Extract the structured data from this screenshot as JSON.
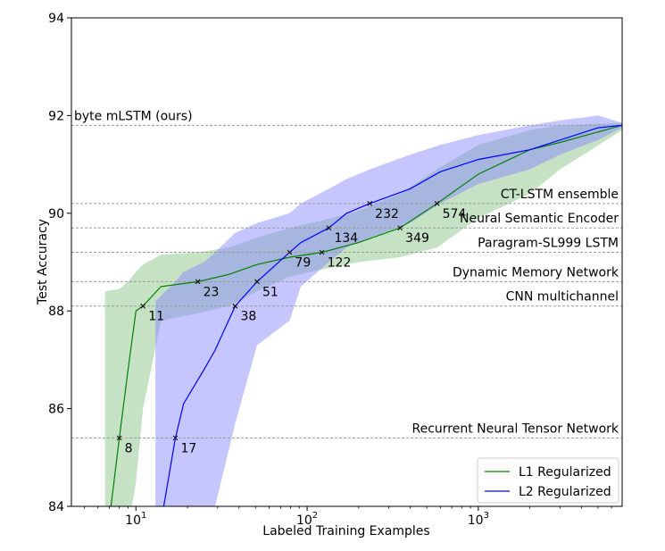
{
  "chart_data": {
    "type": "line",
    "xlabel": "Labeled Training Examples",
    "ylabel": "Test Accuracy",
    "xscale": "log",
    "xlim": [
      4.2,
      6920
    ],
    "ylim": [
      84,
      94
    ],
    "grid": false,
    "legend_position": "bottom-right",
    "x_ticks": [
      {
        "value": 10,
        "base": "10",
        "exp": "1"
      },
      {
        "value": 100,
        "base": "10",
        "exp": "2"
      },
      {
        "value": 1000,
        "base": "10",
        "exp": "3"
      }
    ],
    "y_ticks": [
      84,
      86,
      88,
      90,
      92,
      94
    ],
    "reference_lines": [
      {
        "label": "byte mLSTM (ours)",
        "y": 91.8
      },
      {
        "label": "CT-LSTM ensemble",
        "y": 90.2
      },
      {
        "label": "Neural Semantic Encoder",
        "y": 89.7
      },
      {
        "label": "Paragram-SL999 LSTM",
        "y": 89.2
      },
      {
        "label": "Dynamic Memory Network",
        "y": 88.6
      },
      {
        "label": "CNN multichannel",
        "y": 88.1
      },
      {
        "label": "Recurrent Neural Tensor Network",
        "y": 85.4
      }
    ],
    "series": [
      {
        "name": "L1 Regularized",
        "color": "#008000",
        "band_color": "#7fbf7f",
        "x": [
          6.6,
          8,
          9,
          10,
          11,
          14,
          23,
          35,
          51,
          79,
          122,
          200,
          349,
          574,
          1000,
          2000,
          3000,
          6920
        ],
        "y": [
          83.0,
          85.4,
          86.8,
          88.0,
          88.1,
          88.5,
          88.6,
          88.75,
          88.95,
          89.1,
          89.2,
          89.4,
          89.7,
          90.2,
          90.8,
          91.3,
          91.45,
          91.8
        ],
        "upper": [
          88.4,
          88.45,
          88.6,
          88.8,
          88.95,
          89.15,
          89.2,
          89.3,
          89.5,
          89.7,
          89.85,
          90.05,
          90.4,
          90.9,
          91.4,
          91.7,
          91.8,
          91.85
        ],
        "lower": [
          83.0,
          83.0,
          83.5,
          84.5,
          86.0,
          87.8,
          87.95,
          88.1,
          88.4,
          88.7,
          88.85,
          89.0,
          89.1,
          89.3,
          89.9,
          90.4,
          90.9,
          91.7
        ]
      },
      {
        "name": "L2 Regularized",
        "color": "#0000ff",
        "band_color": "#8080ff",
        "x": [
          13,
          17,
          19,
          25,
          29,
          38,
          51,
          79,
          92,
          134,
          170,
          232,
          400,
          600,
          1000,
          2000,
          3000,
          5000,
          6920
        ],
        "y": [
          83.0,
          85.4,
          86.1,
          86.8,
          87.2,
          88.1,
          88.6,
          89.2,
          89.4,
          89.7,
          90.0,
          90.2,
          90.5,
          90.85,
          91.1,
          91.3,
          91.5,
          91.75,
          91.8
        ],
        "upper": [
          88.2,
          88.6,
          88.8,
          89.0,
          89.2,
          89.6,
          89.8,
          90.0,
          90.2,
          90.5,
          90.7,
          90.9,
          91.2,
          91.4,
          91.6,
          91.8,
          91.9,
          92.0,
          91.85
        ],
        "lower": [
          83.0,
          83.0,
          83.0,
          83.0,
          84.0,
          85.7,
          87.3,
          87.8,
          88.5,
          89.0,
          89.3,
          89.5,
          89.8,
          90.2,
          90.6,
          90.9,
          91.2,
          91.5,
          91.75
        ]
      }
    ],
    "annotations": [
      {
        "series": "L1 Regularized",
        "x": 8,
        "y": 85.4,
        "label": "8"
      },
      {
        "series": "L1 Regularized",
        "x": 11,
        "y": 88.1,
        "label": "11"
      },
      {
        "series": "L1 Regularized",
        "x": 23,
        "y": 88.6,
        "label": "23"
      },
      {
        "series": "L1 Regularized",
        "x": 79,
        "y": 89.2,
        "label": "79"
      },
      {
        "series": "L1 Regularized",
        "x": 122,
        "y": 89.2,
        "label": "122"
      },
      {
        "series": "L1 Regularized",
        "x": 349,
        "y": 89.7,
        "label": "349"
      },
      {
        "series": "L1 Regularized",
        "x": 574,
        "y": 90.2,
        "label": "574"
      },
      {
        "series": "L2 Regularized",
        "x": 17,
        "y": 85.4,
        "label": "17"
      },
      {
        "series": "L2 Regularized",
        "x": 38,
        "y": 88.1,
        "label": "38"
      },
      {
        "series": "L2 Regularized",
        "x": 51,
        "y": 88.6,
        "label": "51"
      },
      {
        "series": "L2 Regularized",
        "x": 134,
        "y": 89.7,
        "label": "134"
      },
      {
        "series": "L2 Regularized",
        "x": 232,
        "y": 90.2,
        "label": "232"
      }
    ]
  }
}
